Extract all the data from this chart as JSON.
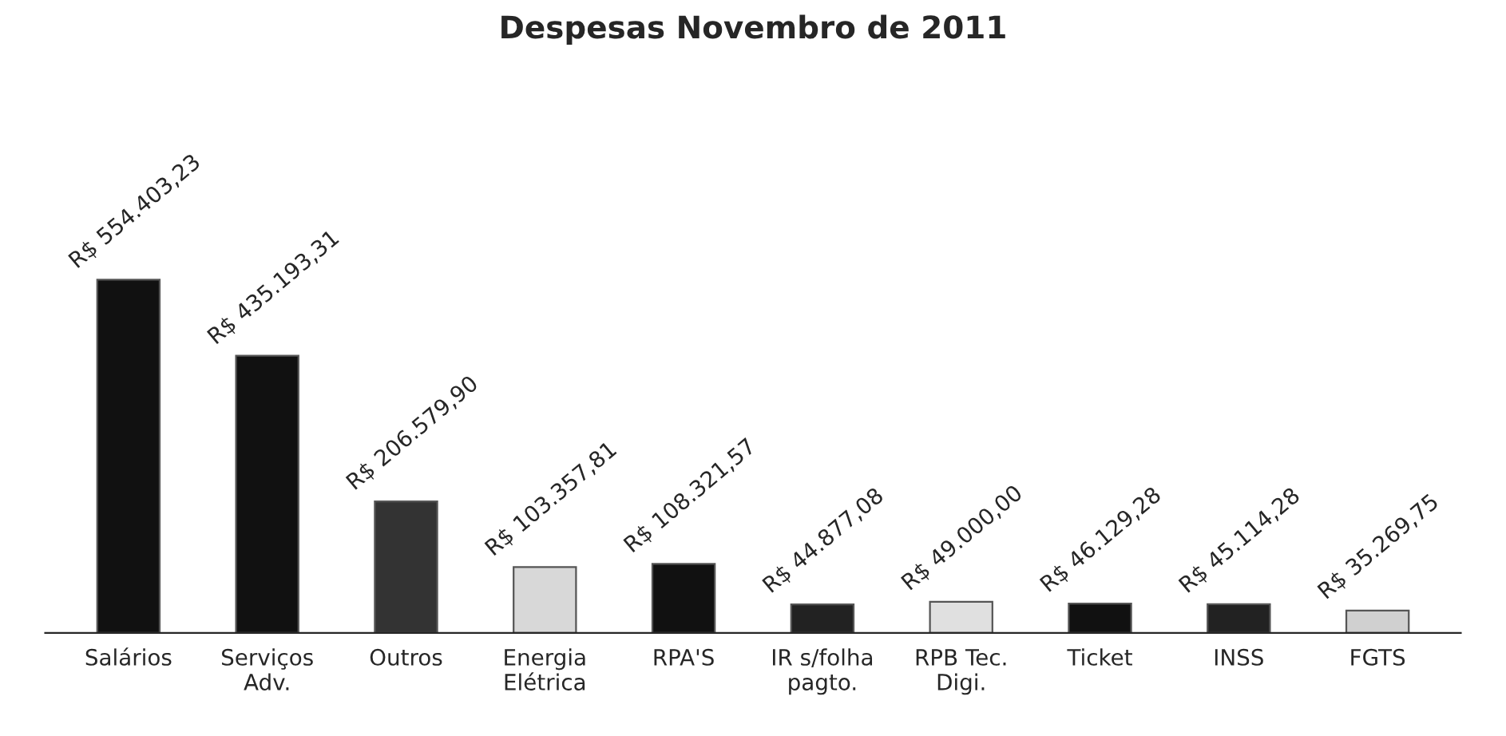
{
  "chart_data": {
    "type": "bar",
    "title": "Despesas Novembro de 2011",
    "categories": [
      "Salários",
      "Serviços\nAdv.",
      "Outros",
      "Energia\nElétrica",
      "RPA'S",
      "IR s/folha\npagto.",
      "RPB Tec.\nDigi.",
      "Ticket",
      "INSS",
      "FGTS"
    ],
    "values": [
      554403.23,
      435193.31,
      206579.9,
      103357.81,
      108321.57,
      44877.08,
      49000.0,
      46129.28,
      45114.28,
      35269.75
    ],
    "value_labels": [
      "R$ 554.403,23",
      "R$ 435.193,31",
      "R$ 206.579,90",
      "R$ 103.357,81",
      "R$ 108.321,57",
      "R$ 44.877,08",
      "R$ 49.000,00",
      "R$ 46.129,28",
      "R$ 45.114,28",
      "R$ 35.269,75"
    ],
    "colors": [
      "#111111",
      "#111111",
      "#333333",
      "#d8d8d8",
      "#111111",
      "#222222",
      "#e0e0e0",
      "#111111",
      "#222222",
      "#d0d0d0"
    ],
    "grid": false,
    "legend": false
  }
}
